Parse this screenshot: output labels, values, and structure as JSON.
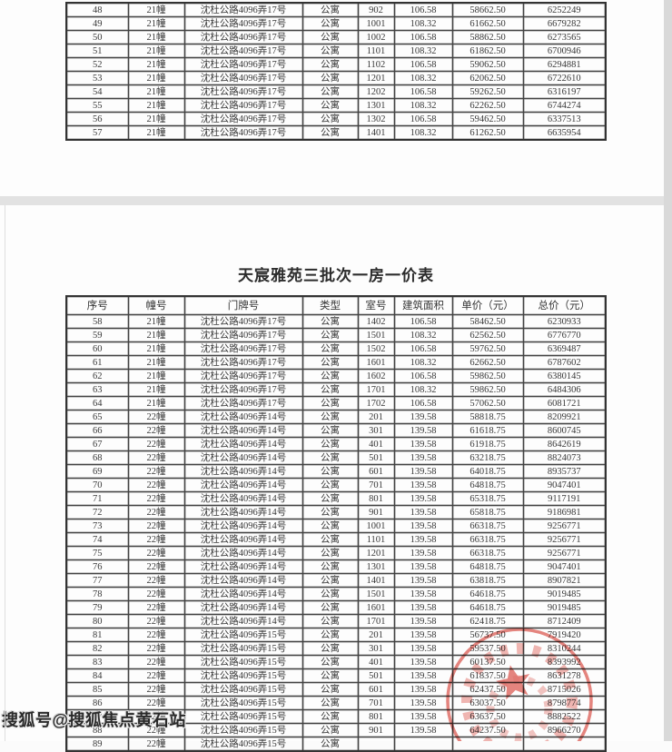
{
  "document": {
    "title": "天宸雅苑三批次一房一价表",
    "watermark": "搜狐号@搜狐焦点黄石站"
  },
  "columns": [
    "序号",
    "幢号",
    "门牌号",
    "类型",
    "室号",
    "建筑面积",
    "单价（元）",
    "总价（元）"
  ],
  "table1": {
    "rows": [
      [
        "48",
        "21幢",
        "沈杜公路4096弄17号",
        "公寓",
        "902",
        "106.58",
        "58662.50",
        "6252249"
      ],
      [
        "49",
        "21幢",
        "沈杜公路4096弄17号",
        "公寓",
        "1001",
        "108.32",
        "61662.50",
        "6679282"
      ],
      [
        "50",
        "21幢",
        "沈杜公路4096弄17号",
        "公寓",
        "1002",
        "106.58",
        "58862.50",
        "6273565"
      ],
      [
        "51",
        "21幢",
        "沈杜公路4096弄17号",
        "公寓",
        "1101",
        "108.32",
        "61862.50",
        "6700946"
      ],
      [
        "52",
        "21幢",
        "沈杜公路4096弄17号",
        "公寓",
        "1102",
        "106.58",
        "59062.50",
        "6294881"
      ],
      [
        "53",
        "21幢",
        "沈杜公路4096弄17号",
        "公寓",
        "1201",
        "108.32",
        "62062.50",
        "6722610"
      ],
      [
        "54",
        "21幢",
        "沈杜公路4096弄17号",
        "公寓",
        "1202",
        "106.58",
        "59262.50",
        "6316197"
      ],
      [
        "55",
        "21幢",
        "沈杜公路4096弄17号",
        "公寓",
        "1301",
        "108.32",
        "62262.50",
        "6744274"
      ],
      [
        "56",
        "21幢",
        "沈杜公路4096弄17号",
        "公寓",
        "1302",
        "106.58",
        "59462.50",
        "6337513"
      ],
      [
        "57",
        "21幢",
        "沈杜公路4096弄17号",
        "公寓",
        "1401",
        "108.32",
        "61262.50",
        "6635954"
      ]
    ]
  },
  "table2": {
    "rows": [
      [
        "58",
        "21幢",
        "沈杜公路4096弄17号",
        "公寓",
        "1402",
        "106.58",
        "58462.50",
        "6230933"
      ],
      [
        "59",
        "21幢",
        "沈杜公路4096弄17号",
        "公寓",
        "1501",
        "108.32",
        "62562.50",
        "6776770"
      ],
      [
        "60",
        "21幢",
        "沈杜公路4096弄17号",
        "公寓",
        "1502",
        "106.58",
        "59762.50",
        "6369487"
      ],
      [
        "61",
        "21幢",
        "沈杜公路4096弄17号",
        "公寓",
        "1601",
        "108.32",
        "62662.50",
        "6787602"
      ],
      [
        "62",
        "21幢",
        "沈杜公路4096弄17号",
        "公寓",
        "1602",
        "106.58",
        "59862.50",
        "6380145"
      ],
      [
        "63",
        "21幢",
        "沈杜公路4096弄17号",
        "公寓",
        "1701",
        "108.32",
        "59862.50",
        "6484306"
      ],
      [
        "64",
        "21幢",
        "沈杜公路4096弄17号",
        "公寓",
        "1702",
        "106.58",
        "57062.50",
        "6081721"
      ],
      [
        "65",
        "22幢",
        "沈杜公路4096弄14号",
        "公寓",
        "201",
        "139.58",
        "58818.75",
        "8209921"
      ],
      [
        "66",
        "22幢",
        "沈杜公路4096弄14号",
        "公寓",
        "301",
        "139.58",
        "61618.75",
        "8600745"
      ],
      [
        "67",
        "22幢",
        "沈杜公路4096弄14号",
        "公寓",
        "401",
        "139.58",
        "61918.75",
        "8642619"
      ],
      [
        "68",
        "22幢",
        "沈杜公路4096弄14号",
        "公寓",
        "501",
        "139.58",
        "63218.75",
        "8824073"
      ],
      [
        "69",
        "22幢",
        "沈杜公路4096弄14号",
        "公寓",
        "601",
        "139.58",
        "64018.75",
        "8935737"
      ],
      [
        "70",
        "22幢",
        "沈杜公路4096弄14号",
        "公寓",
        "701",
        "139.58",
        "64818.75",
        "9047401"
      ],
      [
        "71",
        "22幢",
        "沈杜公路4096弄14号",
        "公寓",
        "801",
        "139.58",
        "65318.75",
        "9117191"
      ],
      [
        "72",
        "22幢",
        "沈杜公路4096弄14号",
        "公寓",
        "901",
        "139.58",
        "65818.75",
        "9186981"
      ],
      [
        "73",
        "22幢",
        "沈杜公路4096弄14号",
        "公寓",
        "1001",
        "139.58",
        "66318.75",
        "9256771"
      ],
      [
        "74",
        "22幢",
        "沈杜公路4096弄14号",
        "公寓",
        "1101",
        "139.58",
        "66318.75",
        "9256771"
      ],
      [
        "75",
        "22幢",
        "沈杜公路4096弄14号",
        "公寓",
        "1201",
        "139.58",
        "66318.75",
        "9256771"
      ],
      [
        "76",
        "22幢",
        "沈杜公路4096弄14号",
        "公寓",
        "1301",
        "139.58",
        "64818.75",
        "9047401"
      ],
      [
        "77",
        "22幢",
        "沈杜公路4096弄14号",
        "公寓",
        "1401",
        "139.58",
        "63818.75",
        "8907821"
      ],
      [
        "78",
        "22幢",
        "沈杜公路4096弄14号",
        "公寓",
        "1501",
        "139.58",
        "64618.75",
        "9019485"
      ],
      [
        "79",
        "22幢",
        "沈杜公路4096弄14号",
        "公寓",
        "1601",
        "139.58",
        "64618.75",
        "9019485"
      ],
      [
        "80",
        "22幢",
        "沈杜公路4096弄14号",
        "公寓",
        "1701",
        "139.58",
        "62418.75",
        "8712409"
      ],
      [
        "81",
        "22幢",
        "沈杜公路4096弄15号",
        "公寓",
        "201",
        "139.58",
        "56737.50",
        "7919420"
      ],
      [
        "82",
        "22幢",
        "沈杜公路4096弄15号",
        "公寓",
        "301",
        "139.58",
        "59537.50",
        "8310244"
      ],
      [
        "83",
        "22幢",
        "沈杜公路4096弄15号",
        "公寓",
        "401",
        "139.58",
        "60137.50",
        "8393992"
      ],
      [
        "84",
        "22幢",
        "沈杜公路4096弄15号",
        "公寓",
        "501",
        "139.58",
        "61837.50",
        "8631278"
      ],
      [
        "85",
        "22幢",
        "沈杜公路4096弄15号",
        "公寓",
        "601",
        "139.58",
        "62437.50",
        "8715026"
      ],
      [
        "86",
        "22幢",
        "沈杜公路4096弄15号",
        "公寓",
        "701",
        "139.58",
        "63037.50",
        "8798774"
      ],
      [
        "87",
        "22幢",
        "沈杜公路4096弄15号",
        "公寓",
        "801",
        "139.58",
        "63637.50",
        "8882522"
      ],
      [
        "88",
        "22幢",
        "沈杜公路4096弄15号",
        "公寓",
        "901",
        "139.58",
        "64237.50",
        "8966270"
      ],
      [
        "89",
        "22幢",
        "沈杜公路4096弄15号",
        "公寓",
        "",
        "",
        "",
        ""
      ]
    ]
  },
  "stamp": {
    "kind": "red-circular-official-seal",
    "has_star": true,
    "color": "#d9534f"
  },
  "colors": {
    "table_border": "#424242",
    "page_divider": "#e2e2e2",
    "stamp_red": "#d9534f"
  }
}
